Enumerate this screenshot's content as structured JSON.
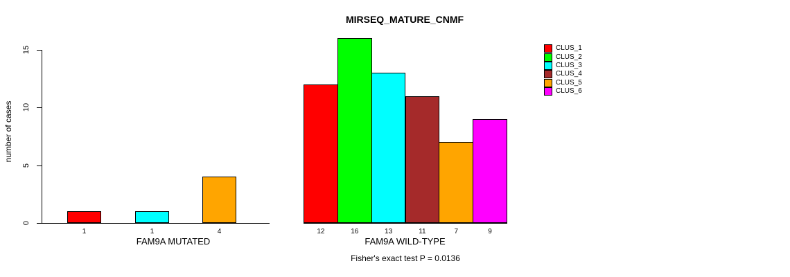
{
  "chart_data": {
    "type": "bar",
    "title": "MIRSEQ_MATURE_CNMF",
    "ylabel": "number of cases",
    "xlabel": "",
    "ylim": [
      0,
      16
    ],
    "yticks": [
      0,
      5,
      10,
      15
    ],
    "grid": false,
    "annotation": "Fisher's exact test P = 0.0136",
    "legend_position": "right",
    "background_color": "#ffffff",
    "axis_color": "#000000",
    "legend": [
      {
        "label": "CLUS_1",
        "color": "#FF0000"
      },
      {
        "label": "CLUS_2",
        "color": "#00FF00"
      },
      {
        "label": "CLUS_3",
        "color": "#00FFFF"
      },
      {
        "label": "CLUS_4",
        "color": "#A52A2A"
      },
      {
        "label": "CLUS_5",
        "color": "#FFA500"
      },
      {
        "label": "CLUS_6",
        "color": "#FF00FF"
      }
    ],
    "groups": [
      {
        "label": "FAM9A MUTATED",
        "bars": [
          {
            "cluster": "CLUS_1",
            "value": 1,
            "color": "#FF0000"
          },
          {
            "cluster": "CLUS_3",
            "value": 1,
            "color": "#00FFFF"
          },
          {
            "cluster": "CLUS_5",
            "value": 4,
            "color": "#FFA500"
          }
        ]
      },
      {
        "label": "FAM9A WILD-TYPE",
        "bars": [
          {
            "cluster": "CLUS_1",
            "value": 12,
            "color": "#FF0000"
          },
          {
            "cluster": "CLUS_2",
            "value": 16,
            "color": "#00FF00"
          },
          {
            "cluster": "CLUS_3",
            "value": 13,
            "color": "#00FFFF"
          },
          {
            "cluster": "CLUS_4",
            "value": 11,
            "color": "#A52A2A"
          },
          {
            "cluster": "CLUS_5",
            "value": 7,
            "color": "#FFA500"
          },
          {
            "cluster": "CLUS_6",
            "value": 9,
            "color": "#FF00FF"
          }
        ]
      }
    ]
  }
}
